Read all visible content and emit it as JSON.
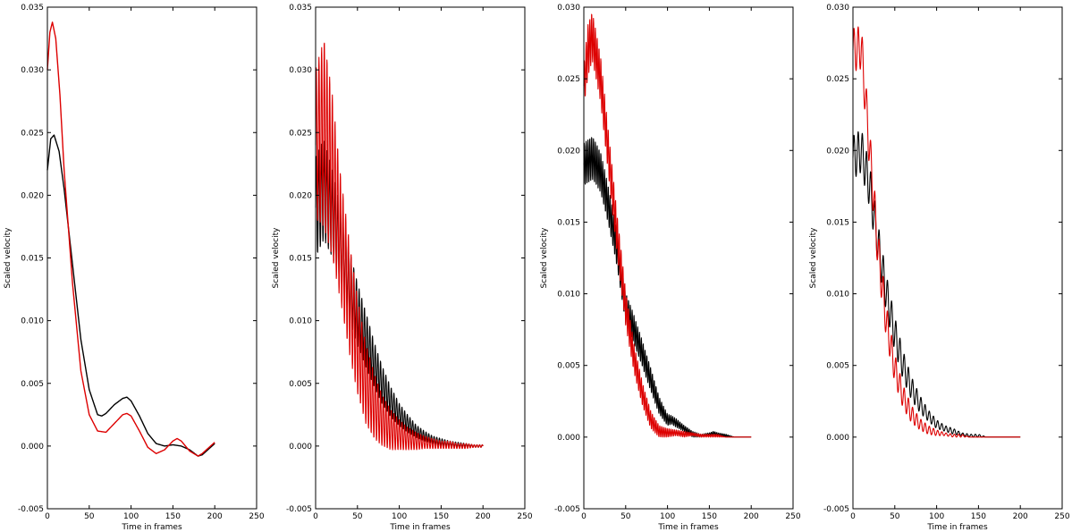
{
  "chart_data": [
    {
      "type": "line",
      "xlabel": "Time in frames",
      "ylabel": "Scaled velocity",
      "xlim": [
        0,
        250
      ],
      "ylim": [
        -0.005,
        0.035
      ],
      "xticks": [
        "0",
        "50",
        "100",
        "150",
        "200",
        "250"
      ],
      "yticks": [
        "-0.005",
        "0.000",
        "0.005",
        "0.010",
        "0.015",
        "0.020",
        "0.025",
        "0.030",
        "0.035"
      ],
      "grid": false,
      "legend": "none",
      "series": [
        {
          "color": "#000000",
          "x": [
            0,
            4,
            8,
            14,
            20,
            30,
            40,
            50,
            60,
            65,
            70,
            80,
            90,
            95,
            100,
            110,
            120,
            130,
            140,
            150,
            160,
            170,
            180,
            185,
            190,
            200
          ],
          "y": [
            0.022,
            0.0245,
            0.0248,
            0.0235,
            0.0205,
            0.0145,
            0.0085,
            0.0045,
            0.0025,
            0.0024,
            0.0026,
            0.0033,
            0.0038,
            0.0039,
            0.0036,
            0.0024,
            0.001,
            0.0002,
            0.0,
            0.0001,
            0.0,
            -0.0003,
            -0.0008,
            -0.0007,
            -0.0004,
            0.0002
          ]
        },
        {
          "color": "#dd0000",
          "x": [
            0,
            3,
            6,
            10,
            15,
            20,
            30,
            40,
            50,
            60,
            70,
            80,
            90,
            95,
            100,
            110,
            120,
            130,
            140,
            150,
            155,
            160,
            170,
            180,
            185,
            190,
            200
          ],
          "y": [
            0.03,
            0.033,
            0.0338,
            0.0325,
            0.028,
            0.022,
            0.013,
            0.006,
            0.0025,
            0.0012,
            0.0011,
            0.0018,
            0.0025,
            0.0026,
            0.0024,
            0.0012,
            -0.0001,
            -0.0006,
            -0.0003,
            0.0004,
            0.0006,
            0.0004,
            -0.0004,
            -0.0008,
            -0.0006,
            -0.0003,
            0.0003
          ]
        }
      ]
    },
    {
      "type": "line",
      "xlabel": "Time in frames",
      "ylabel": "Scaled velocity",
      "xlim": [
        0,
        250
      ],
      "ylim": [
        -0.005,
        0.035
      ],
      "xticks": [
        "0",
        "50",
        "100",
        "150",
        "200",
        "250"
      ],
      "yticks": [
        "-0.005",
        "0.000",
        "0.005",
        "0.010",
        "0.015",
        "0.020",
        "0.025",
        "0.030",
        "0.035"
      ],
      "grid": false,
      "legend": "none",
      "series": [
        {
          "color": "#000000",
          "x": [
            0,
            10,
            20,
            30,
            40,
            50,
            60,
            70,
            80,
            90,
            100,
            110,
            120,
            130,
            140,
            150,
            160,
            170,
            180,
            190,
            200
          ],
          "y": [
            0.019,
            0.0205,
            0.0185,
            0.016,
            0.013,
            0.0105,
            0.0085,
            0.0065,
            0.0048,
            0.0035,
            0.0025,
            0.0018,
            0.0012,
            0.0008,
            0.0005,
            0.0003,
            0.0002,
            0.0001,
            0.0001,
            0.0,
            0.0
          ],
          "amp": [
            0.004,
            0.004,
            0.0035,
            0.003,
            0.0028,
            0.0025,
            0.0022,
            0.0018,
            0.0015,
            0.0012,
            0.0009,
            0.0007,
            0.0005,
            0.0004,
            0.0003,
            0.0003,
            0.0002,
            0.0002,
            0.0001,
            0.0001,
            0.0001
          ],
          "period": 3.2
        },
        {
          "color": "#dd0000",
          "x": [
            0,
            10,
            20,
            30,
            40,
            50,
            60,
            70,
            80,
            90,
            100,
            110,
            120,
            130,
            140,
            150,
            160,
            170,
            180,
            190,
            200
          ],
          "y": [
            0.024,
            0.025,
            0.0215,
            0.0165,
            0.012,
            0.008,
            0.005,
            0.0032,
            0.002,
            0.0013,
            0.0009,
            0.0006,
            0.0004,
            0.0003,
            0.0002,
            0.0001,
            0.0001,
            0.0,
            0.0,
            0.0,
            0.0
          ],
          "amp": [
            0.006,
            0.0075,
            0.0065,
            0.005,
            0.0045,
            0.0038,
            0.0032,
            0.0026,
            0.002,
            0.0016,
            0.0012,
            0.0009,
            0.0007,
            0.0005,
            0.0004,
            0.0003,
            0.0003,
            0.0002,
            0.0002,
            0.0001,
            0.0001
          ],
          "period": 3.2
        }
      ]
    },
    {
      "type": "line",
      "xlabel": "Time in frames",
      "ylabel": "Scaled velocity",
      "xlim": [
        0,
        250
      ],
      "ylim": [
        -0.005,
        0.03
      ],
      "xticks": [
        "0",
        "50",
        "100",
        "150",
        "200",
        "250"
      ],
      "yticks": [
        "-0.005",
        "0.000",
        "0.005",
        "0.010",
        "0.015",
        "0.020",
        "0.025",
        "0.030"
      ],
      "grid": false,
      "legend": "none",
      "series": [
        {
          "color": "#000000",
          "x": [
            0,
            10,
            20,
            30,
            40,
            50,
            60,
            70,
            80,
            90,
            100,
            105,
            110,
            120,
            130,
            140,
            150,
            155,
            160,
            170,
            180,
            190,
            200
          ],
          "y": [
            0.019,
            0.0195,
            0.0185,
            0.016,
            0.013,
            0.009,
            0.0075,
            0.0058,
            0.004,
            0.0022,
            0.0012,
            0.0012,
            0.001,
            0.0006,
            0.0002,
            0.0001,
            0.0002,
            0.0003,
            0.0002,
            0.0001,
            0.0,
            0.0,
            0.0
          ],
          "amp": [
            0.0015,
            0.0015,
            0.0014,
            0.0013,
            0.0012,
            0.0011,
            0.001,
            0.0009,
            0.0008,
            0.0006,
            0.0004,
            0.0003,
            0.0003,
            0.0002,
            0.0002,
            0.0001,
            0.0001,
            0.0001,
            0.0001,
            0.0001,
            0.0,
            0.0,
            0.0
          ],
          "period": 2.2
        },
        {
          "color": "#dd0000",
          "x": [
            0,
            5,
            10,
            20,
            30,
            40,
            50,
            60,
            70,
            80,
            90,
            100,
            110,
            120,
            130,
            140,
            150,
            160,
            170,
            180,
            190,
            200
          ],
          "y": [
            0.0245,
            0.027,
            0.028,
            0.025,
            0.0195,
            0.014,
            0.009,
            0.0055,
            0.003,
            0.0012,
            0.0004,
            0.0003,
            0.0003,
            0.0002,
            0.0002,
            0.0001,
            0.0001,
            0.0001,
            0.0,
            0.0,
            0.0,
            0.0
          ],
          "amp": [
            0.0015,
            0.0018,
            0.0017,
            0.0016,
            0.0015,
            0.0014,
            0.0012,
            0.001,
            0.0008,
            0.0006,
            0.0004,
            0.0003,
            0.0002,
            0.0002,
            0.0001,
            0.0001,
            0.0001,
            0.0001,
            0.0,
            0.0,
            0.0,
            0.0
          ],
          "period": 2.2
        }
      ]
    },
    {
      "type": "line",
      "xlabel": "Time in frames",
      "ylabel": "Scaled velocity",
      "xlim": [
        0,
        250
      ],
      "ylim": [
        -0.005,
        0.03
      ],
      "xticks": [
        "0",
        "50",
        "100",
        "150",
        "200",
        "250"
      ],
      "yticks": [
        "-0.005",
        "0.000",
        "0.005",
        "0.010",
        "0.015",
        "0.020",
        "0.025",
        "0.030"
      ],
      "grid": false,
      "legend": "none",
      "series": [
        {
          "color": "#000000",
          "x": [
            0,
            10,
            20,
            30,
            40,
            50,
            60,
            70,
            80,
            90,
            100,
            110,
            120,
            130,
            140,
            150,
            160,
            170,
            180,
            190,
            200
          ],
          "y": [
            0.0195,
            0.02,
            0.0175,
            0.0135,
            0.01,
            0.0072,
            0.005,
            0.0034,
            0.0023,
            0.0015,
            0.0009,
            0.0006,
            0.0004,
            0.0002,
            0.0001,
            0.0001,
            0.0,
            0.0,
            0.0,
            0.0,
            0.0
          ],
          "amp": [
            0.0015,
            0.0015,
            0.0015,
            0.0014,
            0.0013,
            0.0012,
            0.001,
            0.0008,
            0.0006,
            0.0004,
            0.0003,
            0.0002,
            0.0002,
            0.0001,
            0.0001,
            0.0001,
            0.0,
            0.0,
            0.0,
            0.0,
            0.0
          ],
          "period": 5
        },
        {
          "color": "#dd0000",
          "x": [
            0,
            10,
            20,
            30,
            40,
            50,
            60,
            70,
            80,
            90,
            100,
            110,
            120,
            130,
            140,
            150,
            160,
            170,
            180,
            190,
            200
          ],
          "y": [
            0.027,
            0.0272,
            0.02,
            0.013,
            0.008,
            0.0048,
            0.0028,
            0.0016,
            0.0009,
            0.0005,
            0.0003,
            0.0002,
            0.0001,
            0.0001,
            0.0,
            0.0,
            0.0,
            0.0,
            0.0,
            0.0,
            0.0
          ],
          "amp": [
            0.0015,
            0.0015,
            0.0015,
            0.0014,
            0.0012,
            0.001,
            0.0008,
            0.0006,
            0.0004,
            0.0003,
            0.0002,
            0.0001,
            0.0001,
            0.0001,
            0.0,
            0.0,
            0.0,
            0.0,
            0.0,
            0.0,
            0.0
          ],
          "period": 5
        }
      ]
    }
  ]
}
